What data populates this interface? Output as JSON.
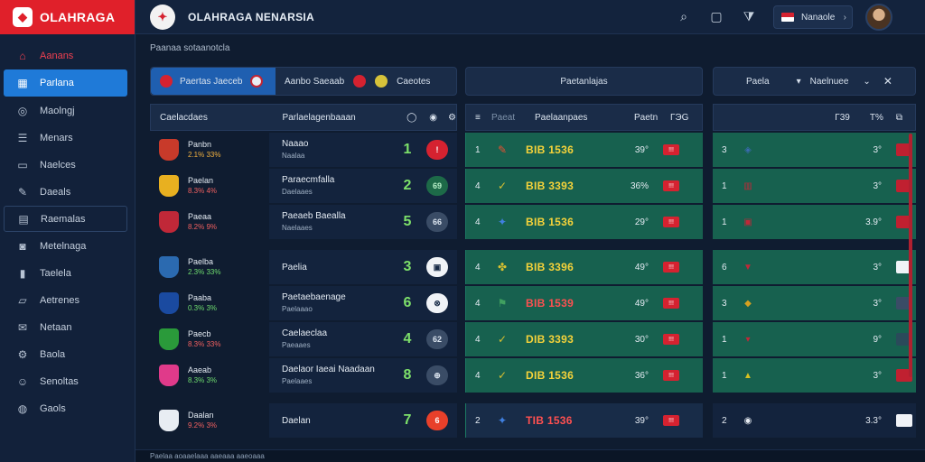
{
  "app": {
    "logo_text": "OLAHRAGA",
    "brand_title": "OLAHRAGA NENARSIA"
  },
  "topbar": {
    "lang_label": "Nanaole",
    "icons": [
      "search-icon",
      "square-icon",
      "filter-icon"
    ]
  },
  "sidebar": {
    "items": [
      {
        "label": "Aanans",
        "icon": "home-icon",
        "style": "red"
      },
      {
        "label": "Parlana",
        "icon": "grid-icon",
        "style": "active"
      },
      {
        "label": "Maolngj",
        "icon": "target-icon",
        "style": ""
      },
      {
        "label": "Menars",
        "icon": "list-icon",
        "style": ""
      },
      {
        "label": "Naelces",
        "icon": "tv-icon",
        "style": ""
      },
      {
        "label": "Daeals",
        "icon": "edit-icon",
        "style": ""
      },
      {
        "label": "Raemalas",
        "icon": "table-icon",
        "style": "boxed"
      },
      {
        "label": "Metelnaga",
        "icon": "camera-icon",
        "style": ""
      },
      {
        "label": "Taelela",
        "icon": "chart-icon",
        "style": ""
      },
      {
        "label": "Aetrenes",
        "icon": "chat-icon",
        "style": ""
      },
      {
        "label": "Netaan",
        "icon": "mail-icon",
        "style": ""
      },
      {
        "label": "Baola",
        "icon": "gear-icon",
        "style": ""
      },
      {
        "label": "Senoltas",
        "icon": "user-icon",
        "style": ""
      },
      {
        "label": "Gaols",
        "icon": "globe-icon",
        "style": ""
      }
    ]
  },
  "breadcrumb": "Paanaa sotaanotcla",
  "filters": {
    "left_active": "Paertas Jaeceb",
    "left_2": "Aanbo Saeaab",
    "left_3": "Caeotes",
    "center": "Paetanlajas",
    "right_1": "Paela",
    "right_2": "Naelnuee"
  },
  "panel_left": {
    "header_col1": "Caelacdaes",
    "header_col2": "Parlaelagenbaaan",
    "rows": [
      {
        "team": "Panbn",
        "sub": "2.1% 33%",
        "sub_style": "",
        "comp1": "Naaao",
        "comp2": "Naalaa",
        "score": "1",
        "pill": "!",
        "pill_style": "red",
        "crest": "#c83a2a",
        "sep": false
      },
      {
        "team": "Paelan",
        "sub": "8.3% 4%",
        "sub_style": "red",
        "comp1": "Paraecmfalla",
        "comp2": "Daelaaes",
        "score": "2",
        "pill": "69",
        "pill_style": "green",
        "crest": "#e8b020",
        "sep": false
      },
      {
        "team": "Paeaa",
        "sub": "8.2% 9%",
        "sub_style": "red",
        "comp1": "Paeaeb Baealla",
        "comp2": "Naelaaes",
        "score": "5",
        "pill": "66",
        "pill_style": "grey",
        "crest": "#c02838",
        "sep": false
      },
      {
        "team": "Paelba",
        "sub": "2.3% 33%",
        "sub_style": "green",
        "comp1": "Paelia",
        "comp2": "",
        "score": "3",
        "pill": "▣",
        "pill_style": "white",
        "crest": "#2b6ab0",
        "sep": true
      },
      {
        "team": "Paaba",
        "sub": "0.3% 3%",
        "sub_style": "green",
        "comp1": "Paetaebaenage",
        "comp2": "Paelaaao",
        "score": "6",
        "pill": "⊗",
        "pill_style": "white",
        "crest": "#1a4aa0",
        "sep": false
      },
      {
        "team": "Paecb",
        "sub": "8.3% 33%",
        "sub_style": "red",
        "comp1": "Caelaeclaa",
        "comp2": "Paeaaes",
        "score": "4",
        "pill": "62",
        "pill_style": "grey",
        "crest": "#2a9a3a",
        "sep": false
      },
      {
        "team": "Aaeab",
        "sub": "8.3% 3%",
        "sub_style": "green",
        "comp1": "Daelaor Iaeai Naadaan",
        "comp2": "Paelaaes",
        "score": "8",
        "pill": "⊕",
        "pill_style": "grey",
        "crest": "#e03a8a",
        "sep": false
      },
      {
        "team": "Daalan",
        "sub": "9.2% 3%",
        "sub_style": "red",
        "comp1": "Daelan",
        "comp2": "",
        "score": "7",
        "pill": "6",
        "pill_style": "orange",
        "crest": "#e8edf3",
        "sep": true
      }
    ]
  },
  "panel_center": {
    "header_label": "Paelaanpaes",
    "header_col2": "Paetn",
    "header_col3": "ГЭG",
    "rows": [
      {
        "num": "1",
        "odds": "BIB 1536",
        "odds_style": "",
        "pct": "39°",
        "flag": "!!!",
        "dark": false,
        "sep": false
      },
      {
        "num": "4",
        "odds": "BIB 3393",
        "odds_style": "",
        "pct": "36%",
        "flag": "!!!",
        "dark": false,
        "sep": false
      },
      {
        "num": "4",
        "odds": "BIB 1536",
        "odds_style": "",
        "pct": "29°",
        "flag": "!!!",
        "dark": false,
        "sep": false
      },
      {
        "num": "4",
        "odds": "BIB 3396",
        "odds_style": "",
        "pct": "49°",
        "flag": "!!!",
        "dark": false,
        "sep": true
      },
      {
        "num": "4",
        "odds": "BIB 1539",
        "odds_style": "red",
        "pct": "49°",
        "flag": "!!!",
        "dark": false,
        "sep": false
      },
      {
        "num": "4",
        "odds": "DIB 3393",
        "odds_style": "",
        "pct": "30°",
        "flag": "!!!",
        "dark": false,
        "sep": false
      },
      {
        "num": "4",
        "odds": "DIB 1536",
        "odds_style": "",
        "pct": "36°",
        "flag": "!!!",
        "dark": false,
        "sep": false
      },
      {
        "num": "2",
        "odds": "TIB 1536",
        "odds_style": "red",
        "pct": "39°",
        "flag": "!!!",
        "dark": true,
        "sep": true
      }
    ]
  },
  "panel_right": {
    "header_col1": "Γ39",
    "header_col2": "T%",
    "rows": [
      {
        "num": "3",
        "val": "3°",
        "bar": "#c02030",
        "dark": false,
        "sep": false,
        "crest": "#3a6ab0"
      },
      {
        "num": "1",
        "val": "3°",
        "bar": "#c02030",
        "dark": false,
        "sep": false,
        "crest": "#c02838"
      },
      {
        "num": "1",
        "val": "3.9°",
        "bar": "#c02030",
        "dark": false,
        "sep": false,
        "crest": "#c02838"
      },
      {
        "num": "6",
        "val": "3°",
        "bar": "#f0f3f7",
        "dark": false,
        "sep": true,
        "crest": "#c02838"
      },
      {
        "num": "3",
        "val": "3°",
        "bar": "#3a4c66",
        "dark": false,
        "sep": false,
        "crest": "#d6a020"
      },
      {
        "num": "1",
        "val": "9°",
        "bar": "#2a4a5a",
        "dark": false,
        "sep": false,
        "crest": "#c02838"
      },
      {
        "num": "1",
        "val": "3°",
        "bar": "#c02030",
        "dark": false,
        "sep": false,
        "crest": "#d6c020"
      },
      {
        "num": "2",
        "val": "3.3°",
        "bar": "#f0f3f7",
        "dark": true,
        "sep": true,
        "crest": "#e8edf3"
      }
    ]
  },
  "footer_text": "Paelaa aoaaelaaa aaeaaa aaeoaaa"
}
